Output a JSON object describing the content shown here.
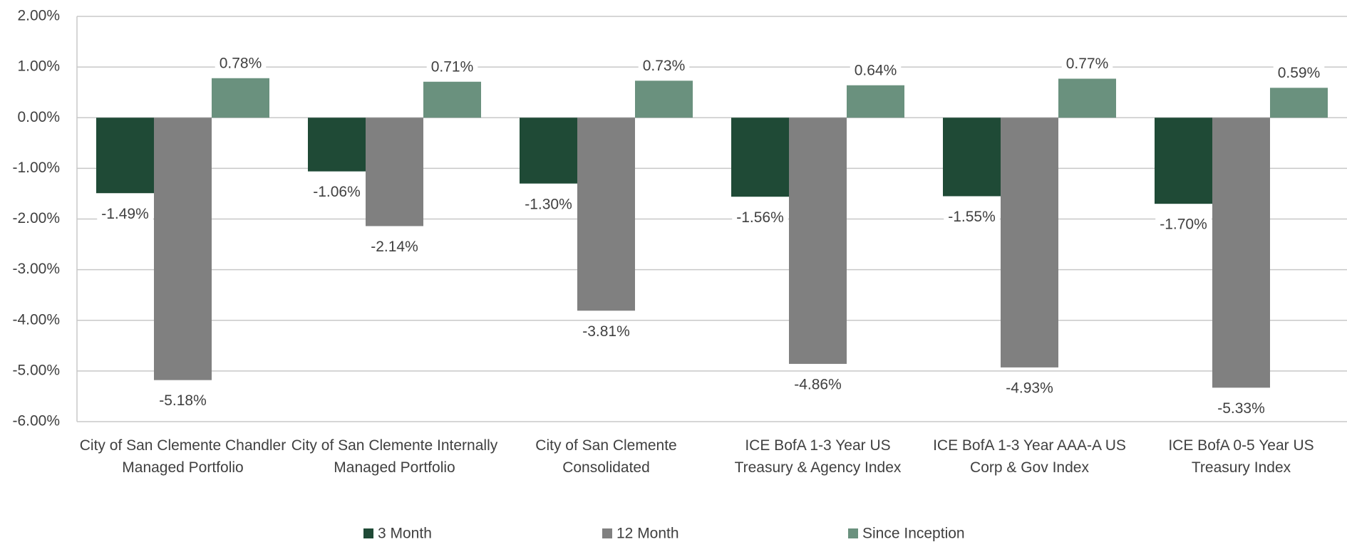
{
  "chart_data": {
    "type": "bar",
    "categories": [
      "City of San Clemente Chandler Managed Portfolio",
      "City of San Clemente Internally Managed Portfolio",
      "City of San Clemente Consolidated",
      "ICE BofA 1-3 Year US Treasury & Agency Index",
      "ICE BofA 1-3 Year AAA-A US Corp & Gov Index",
      "ICE BofA 0-5 Year US Treasury Index"
    ],
    "series": [
      {
        "name": "3 Month",
        "color": "#1f4a36",
        "values": [
          -1.49,
          -1.06,
          -1.3,
          -1.56,
          -1.55,
          -1.7
        ],
        "value_labels": [
          "-1.49%",
          "-1.06%",
          "-1.30%",
          "-1.56%",
          "-1.55%",
          "-1.70%"
        ]
      },
      {
        "name": "12 Month",
        "color": "#808080",
        "values": [
          -5.18,
          -2.14,
          -3.81,
          -4.86,
          -4.93,
          -5.33
        ],
        "value_labels": [
          "-5.18%",
          "-2.14%",
          "-3.81%",
          "-4.86%",
          "-4.93%",
          "-5.33%"
        ]
      },
      {
        "name": "Since Inception",
        "color": "#6a917e",
        "values": [
          0.78,
          0.71,
          0.73,
          0.64,
          0.77,
          0.59
        ],
        "value_labels": [
          "0.78%",
          "0.71%",
          "0.73%",
          "0.64%",
          "0.77%",
          "0.59%"
        ]
      }
    ],
    "ylim": [
      -6,
      2
    ],
    "yticks": [
      {
        "value": -6,
        "label": "-6.00%"
      },
      {
        "value": -5,
        "label": "-5.00%"
      },
      {
        "value": -4,
        "label": "-4.00%"
      },
      {
        "value": -3,
        "label": "-3.00%"
      },
      {
        "value": -2,
        "label": "-2.00%"
      },
      {
        "value": -1,
        "label": "-1.00%"
      },
      {
        "value": 0,
        "label": "0.00%"
      },
      {
        "value": 1,
        "label": "1.00%"
      },
      {
        "value": 2,
        "label": "2.00%"
      }
    ],
    "grid": true,
    "legend": "bottom"
  }
}
